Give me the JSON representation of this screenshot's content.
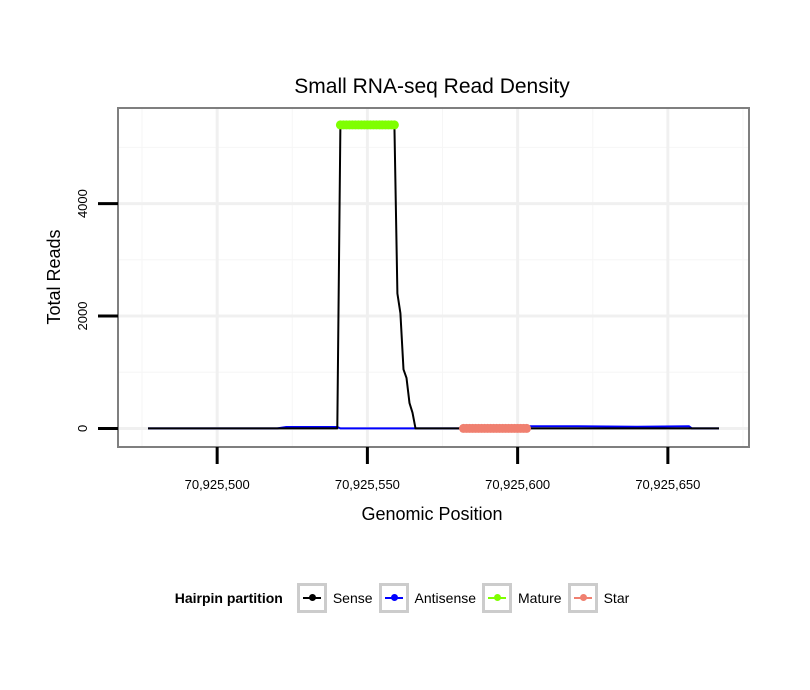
{
  "chart_data": {
    "type": "line",
    "title": "Small RNA-seq Read Density",
    "xlabel": "Genomic Position",
    "ylabel": "Total Reads",
    "xlim": [
      70925467,
      70925677
    ],
    "ylim": [
      -330,
      5700
    ],
    "x_ticks": [
      70925500,
      70925550,
      70925600,
      70925650
    ],
    "x_tick_labels": [
      "70,925,500",
      "70,925,550",
      "70,925,600",
      "70,925,650"
    ],
    "y_ticks": [
      0,
      2000,
      4000
    ],
    "y_tick_labels": [
      "0",
      "2000",
      "4000"
    ],
    "grid": true,
    "legend": {
      "title": "Hairpin partition",
      "position": "bottom",
      "entries": [
        {
          "name": "Sense",
          "color": "#000000"
        },
        {
          "name": "Antisense",
          "color": "#0000ff"
        },
        {
          "name": "Mature",
          "color": "#7fff00"
        },
        {
          "name": "Star",
          "color": "#f08070"
        }
      ]
    },
    "series": [
      {
        "name": "Sense",
        "color": "#000000",
        "x": [
          70925477,
          70925520,
          70925540,
          70925541,
          70925547,
          70925554,
          70925559,
          70925560,
          70925561,
          70925562,
          70925563,
          70925564,
          70925565,
          70925566,
          70925580,
          70925605,
          70925620,
          70925640,
          70925657,
          70925658,
          70925667
        ],
        "y": [
          0,
          0,
          0,
          5400,
          5400,
          5400,
          5400,
          2400,
          2050,
          1050,
          900,
          450,
          280,
          0,
          0,
          0,
          0,
          0,
          0,
          0,
          0
        ]
      },
      {
        "name": "Antisense",
        "color": "#0000ff",
        "x": [
          70925477,
          70925520,
          70925523,
          70925540,
          70925541,
          70925603,
          70925604,
          70925620,
          70925640,
          70925657,
          70925658,
          70925667
        ],
        "y": [
          0,
          0,
          25,
          25,
          0,
          0,
          40,
          40,
          30,
          40,
          0,
          0
        ]
      },
      {
        "name": "Mature",
        "color": "#7fff00",
        "x": [
          70925541,
          70925542,
          70925543,
          70925544,
          70925545,
          70925546,
          70925547,
          70925548,
          70925549,
          70925550,
          70925551,
          70925552,
          70925553,
          70925554,
          70925555,
          70925556,
          70925557,
          70925558,
          70925559
        ],
        "y": [
          5400,
          5400,
          5400,
          5400,
          5400,
          5400,
          5400,
          5400,
          5400,
          5400,
          5400,
          5400,
          5400,
          5400,
          5400,
          5400,
          5400,
          5400,
          5400
        ]
      },
      {
        "name": "Star",
        "color": "#f08070",
        "x": [
          70925582,
          70925583,
          70925584,
          70925585,
          70925586,
          70925587,
          70925588,
          70925589,
          70925590,
          70925591,
          70925592,
          70925593,
          70925594,
          70925595,
          70925596,
          70925597,
          70925598,
          70925599,
          70925600,
          70925601,
          70925602,
          70925603
        ],
        "y": [
          0,
          0,
          0,
          0,
          0,
          0,
          0,
          0,
          0,
          0,
          0,
          0,
          0,
          0,
          0,
          0,
          0,
          0,
          0,
          0,
          0,
          0
        ]
      }
    ]
  }
}
